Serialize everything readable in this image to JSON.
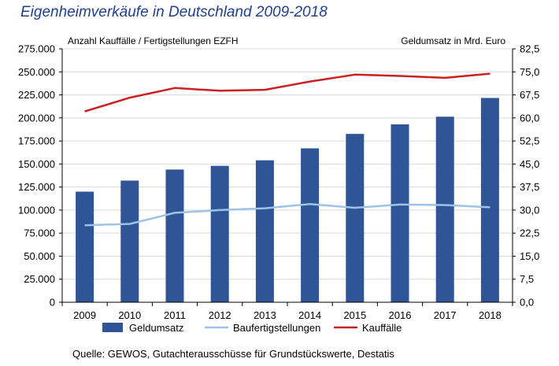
{
  "title": "Eigenheimverkäufe in Deutschland 2009-2018",
  "source": "Quelle: GEWOS, Gutachterausschüsse für Grundstückswerte, Destatis",
  "colors": {
    "bar": "#2f5597",
    "light_line": "#9dc3e6",
    "red_line": "#cc1f1f",
    "title": "#1f3f8f"
  },
  "chart_data": {
    "type": "bar+line",
    "left_axis_label": "Anzahl Kauffälle / Fertigstellungen EZFH",
    "right_axis_label": "Geldumsatz in Mrd. Euro",
    "categories": [
      "2009",
      "2010",
      "2011",
      "2012",
      "2013",
      "2014",
      "2015",
      "2016",
      "2017",
      "2018"
    ],
    "left_ylim": [
      0,
      275000
    ],
    "left_ticks": [
      "0",
      "25.000",
      "50.000",
      "75.000",
      "100.000",
      "125.000",
      "150.000",
      "175.000",
      "200.000",
      "225.000",
      "250.000",
      "275.000"
    ],
    "right_ylim": [
      0,
      82.5
    ],
    "right_ticks": [
      "0,0",
      "7,5",
      "15,0",
      "22,5",
      "30,0",
      "37,5",
      "45,0",
      "52,5",
      "60,0",
      "67,5",
      "75,0",
      "82,5"
    ],
    "series": [
      {
        "name": "Geldumsatz",
        "type": "bar",
        "axis": "right",
        "values": [
          36.0,
          39.6,
          43.2,
          44.4,
          46.2,
          50.1,
          54.8,
          57.9,
          60.4,
          66.5
        ]
      },
      {
        "name": "Baufertigstellungen",
        "type": "line",
        "axis": "left",
        "values": [
          83500,
          85000,
          97000,
          100000,
          102000,
          106500,
          102500,
          106000,
          105500,
          103000
        ]
      },
      {
        "name": "Kauffälle",
        "type": "line",
        "axis": "left",
        "values": [
          207000,
          222000,
          232500,
          229500,
          230500,
          239500,
          247000,
          245500,
          243500,
          248000
        ]
      }
    ]
  }
}
